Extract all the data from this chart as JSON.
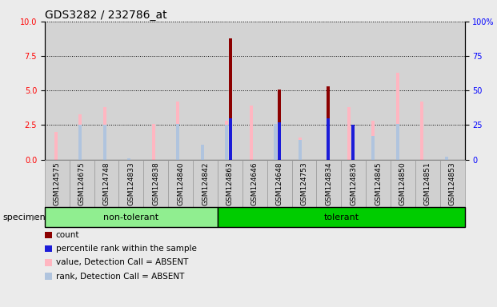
{
  "title": "GDS3282 / 232786_at",
  "categories": [
    "GSM124575",
    "GSM124675",
    "GSM124748",
    "GSM124833",
    "GSM124838",
    "GSM124840",
    "GSM124842",
    "GSM124863",
    "GSM124646",
    "GSM124648",
    "GSM124753",
    "GSM124834",
    "GSM124836",
    "GSM124845",
    "GSM124850",
    "GSM124851",
    "GSM124853"
  ],
  "groups": [
    {
      "label": "non-tolerant",
      "start": 0,
      "end": 7,
      "color": "#90EE90"
    },
    {
      "label": "tolerant",
      "start": 7,
      "end": 17,
      "color": "#00CC00"
    }
  ],
  "count": [
    0,
    0,
    0,
    0,
    0,
    0,
    0,
    8.8,
    0,
    5.05,
    0,
    5.3,
    0,
    0,
    0,
    0,
    0
  ],
  "rank_within_sample": [
    0,
    0,
    0,
    0,
    0,
    0,
    0,
    3.0,
    0,
    2.7,
    0,
    3.0,
    2.5,
    0,
    0,
    0,
    0
  ],
  "value_absent": [
    2.0,
    3.3,
    3.8,
    0,
    2.6,
    4.2,
    0,
    2.8,
    3.9,
    0,
    1.6,
    0,
    3.8,
    2.8,
    6.3,
    4.2,
    0
  ],
  "rank_absent": [
    0,
    2.5,
    2.5,
    0.1,
    0,
    2.6,
    1.1,
    2.5,
    0,
    2.6,
    1.4,
    0,
    0,
    1.7,
    2.6,
    0,
    0.2
  ],
  "ylim_left": [
    0,
    10
  ],
  "ylim_right": [
    0,
    100
  ],
  "yticks_left": [
    0,
    2.5,
    5.0,
    7.5,
    10
  ],
  "yticks_right": [
    0,
    25,
    50,
    75,
    100
  ],
  "color_count": "#8B0000",
  "color_rank": "#1C1CD8",
  "color_value_absent": "#FFB6C1",
  "color_rank_absent": "#B0C4DE",
  "background_plot": "#D3D3D3",
  "background_figure": "#EBEBEB",
  "bar_width": 0.15,
  "title_fontsize": 10,
  "tick_fontsize": 7,
  "label_fontsize": 8
}
